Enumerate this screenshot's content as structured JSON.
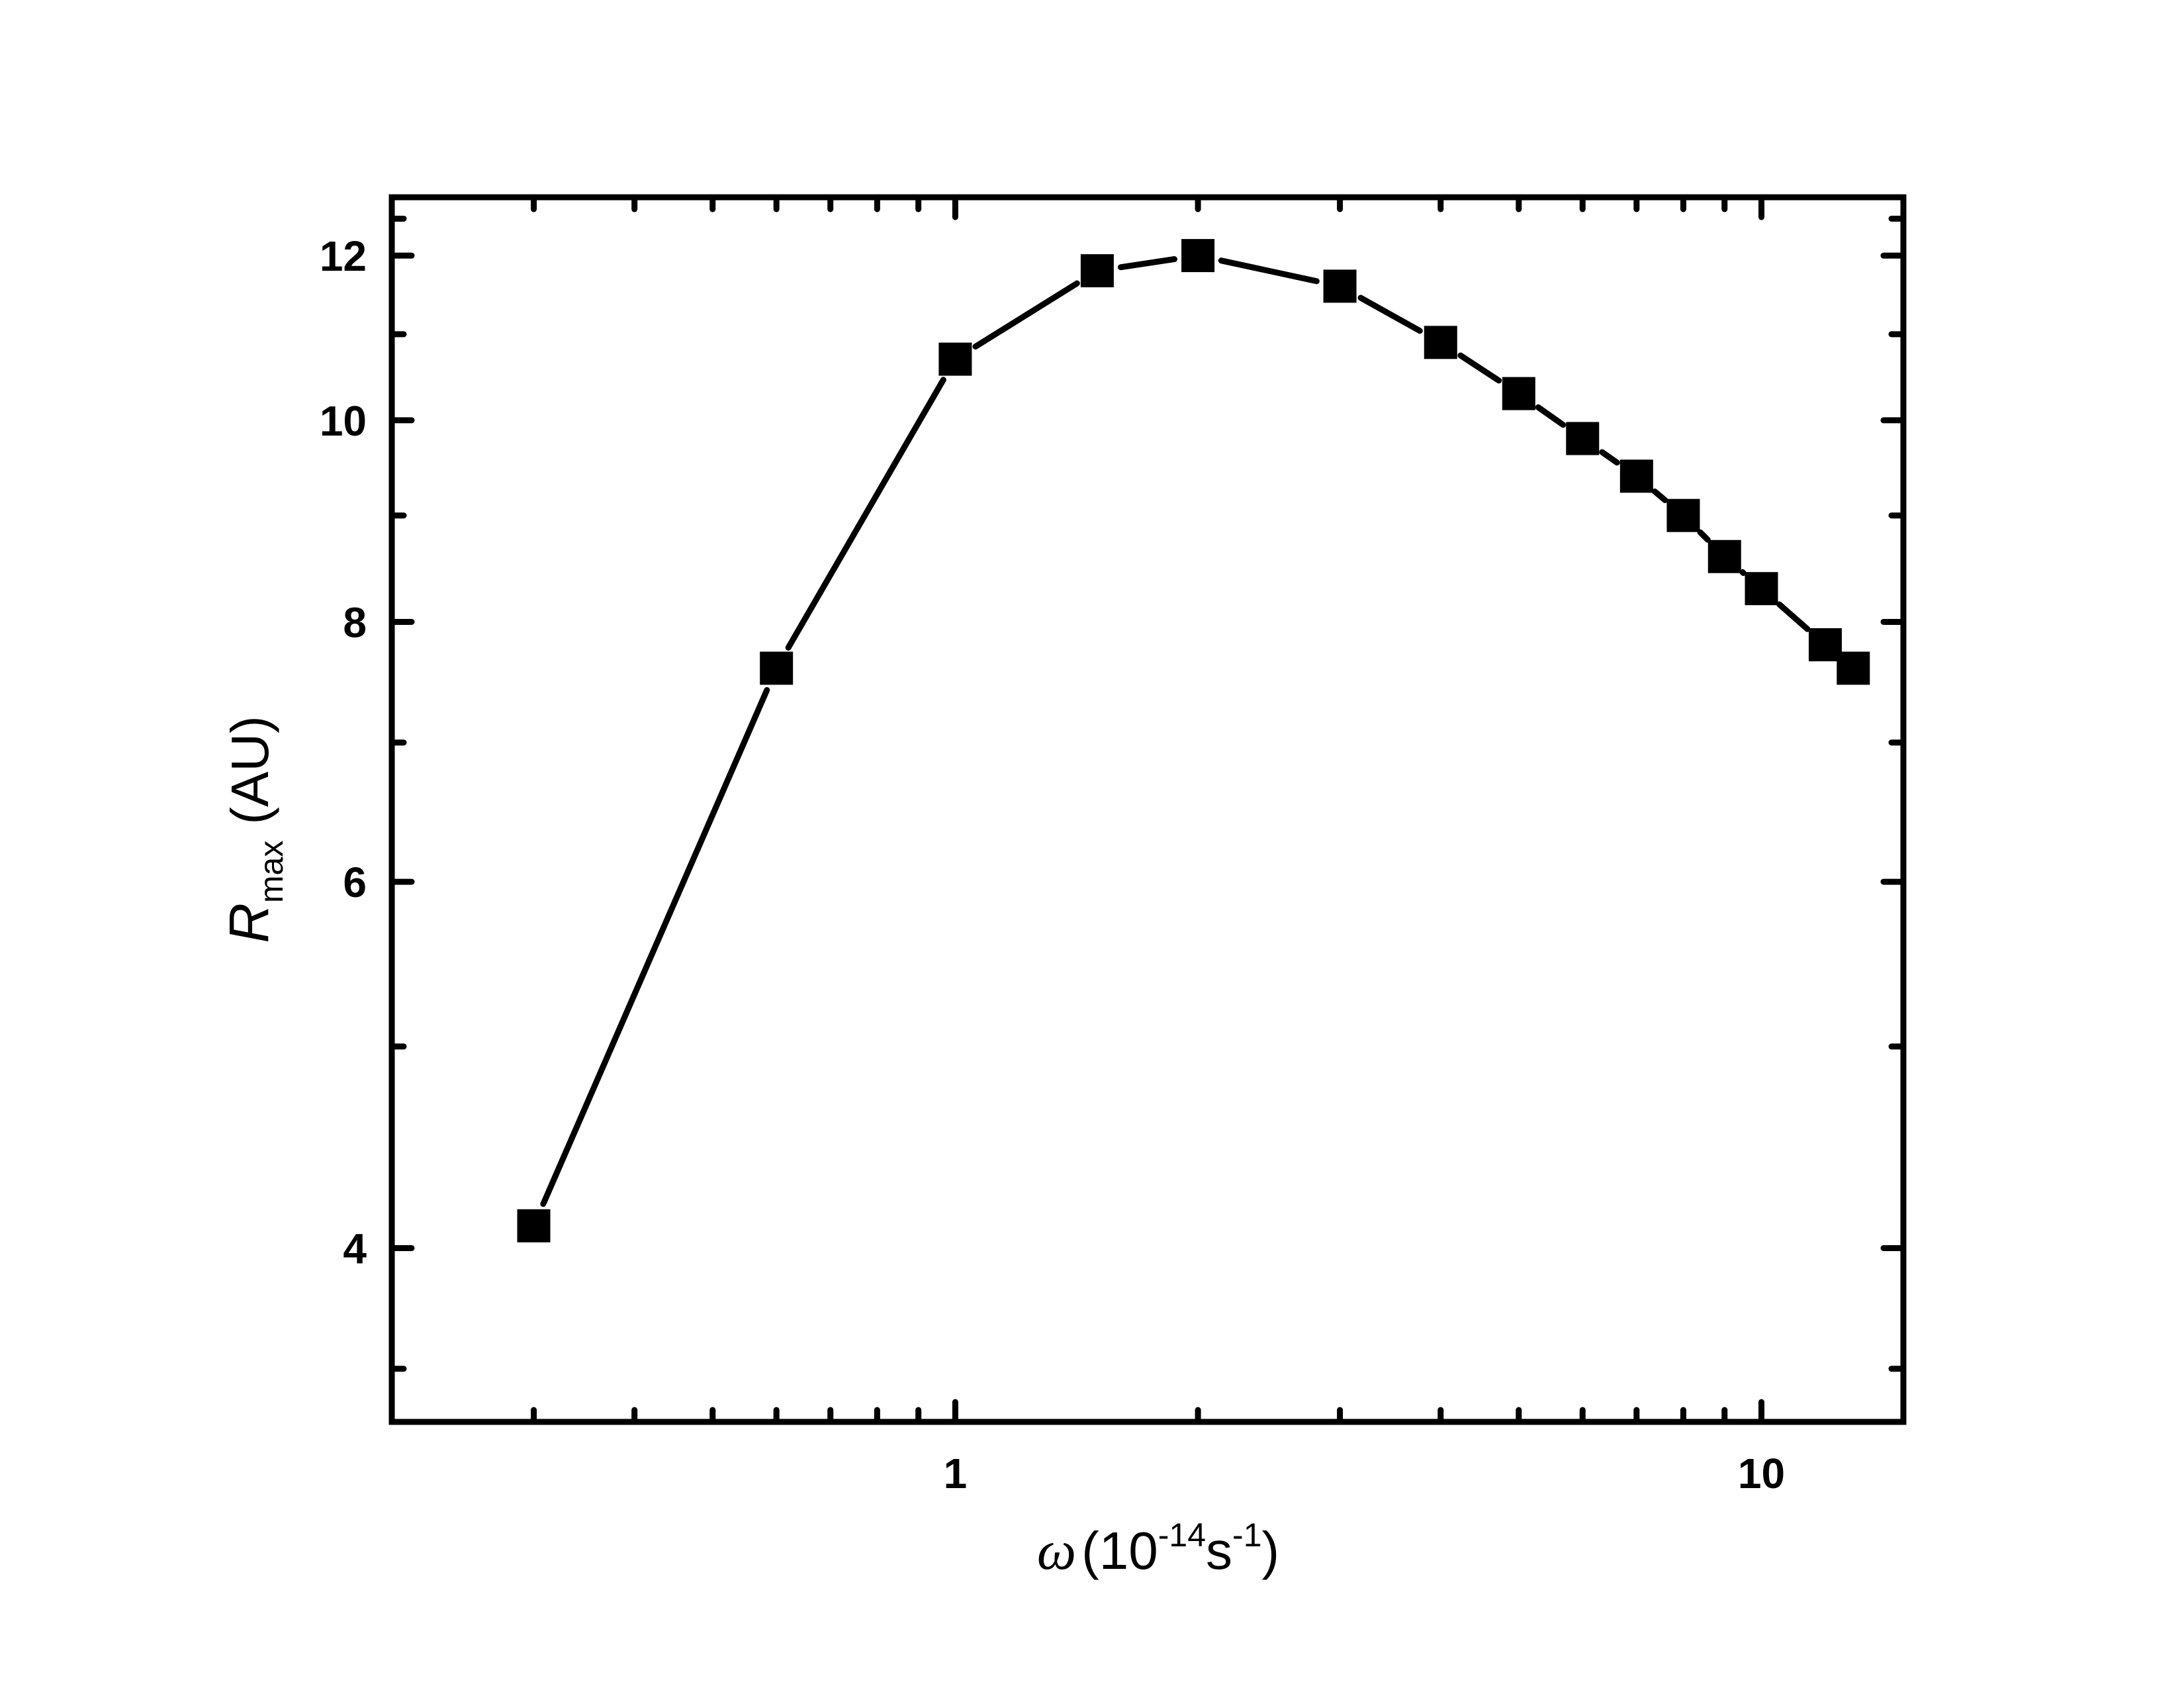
{
  "chart_data": {
    "type": "line",
    "x_scale": "log",
    "y_scale": "log",
    "x_label": {
      "symbol": "ω",
      "open": "(10",
      "exp1": "-14",
      "mid": "s",
      "exp2": "-1",
      "close": ")"
    },
    "y_label": {
      "symbol": "R",
      "subscript": "max",
      "unit": "(AU)"
    },
    "x_ticks": [
      "1",
      "10"
    ],
    "y_ticks": [
      "4",
      "6",
      "8",
      "10",
      "12"
    ],
    "xlim": [
      0.2,
      15
    ],
    "ylim": [
      3.3,
      12.8
    ],
    "series": [
      {
        "marker": "square",
        "color": "#000000",
        "x": [
          0.3,
          0.6,
          1.0,
          1.5,
          2.0,
          3.0,
          4.0,
          5.0,
          6.0,
          7.0,
          8.0,
          9.0,
          10.0,
          12.0,
          13.0
        ],
        "y": [
          4.1,
          7.6,
          10.7,
          11.8,
          12.0,
          11.6,
          10.9,
          10.3,
          9.8,
          9.4,
          9.0,
          8.6,
          8.3,
          7.8,
          7.6
        ]
      }
    ],
    "grid": false,
    "legend": "none"
  },
  "colors": {
    "foreground": "#000000",
    "background": "#ffffff"
  }
}
